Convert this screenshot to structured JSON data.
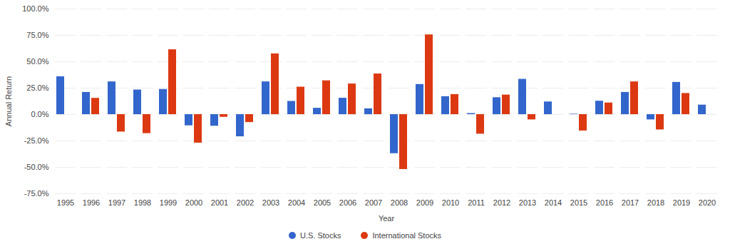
{
  "chart_data": {
    "type": "bar",
    "x_label": "Year",
    "y_label": "Annual Return",
    "categories": [
      "1995",
      "1996",
      "1997",
      "1998",
      "1999",
      "2000",
      "2001",
      "2002",
      "2003",
      "2004",
      "2005",
      "2006",
      "2007",
      "2008",
      "2009",
      "2010",
      "2011",
      "2012",
      "2013",
      "2014",
      "2015",
      "2016",
      "2017",
      "2018",
      "2019",
      "2020"
    ],
    "series": [
      {
        "name": "U.S. Stocks",
        "color": "#3366cc",
        "values": [
          35.8,
          21.0,
          31.0,
          23.3,
          23.8,
          -10.6,
          -11.0,
          -21.0,
          31.0,
          12.5,
          6.0,
          15.5,
          5.5,
          -37.0,
          28.5,
          17.0,
          1.0,
          16.0,
          33.4,
          12.0,
          0.4,
          12.7,
          21.0,
          -5.0,
          30.5,
          9.0
        ]
      },
      {
        "name": "International Stocks",
        "color": "#dc3912",
        "values": [
          null,
          15.4,
          -16.5,
          -18.0,
          61.4,
          -27.0,
          -2.5,
          -7.5,
          57.5,
          26.0,
          32.0,
          29.0,
          38.5,
          -52.0,
          75.5,
          19.0,
          -18.5,
          18.5,
          -5.0,
          null,
          -15.5,
          11.0,
          31.0,
          -14.5,
          20.0,
          null
        ]
      }
    ],
    "ylim": [
      -75,
      100
    ],
    "yticks": [
      {
        "value": -75,
        "label": "-75.0%"
      },
      {
        "value": -50,
        "label": "-50.0%"
      },
      {
        "value": -25,
        "label": "-25.0%"
      },
      {
        "value": 0,
        "label": "0.0%"
      },
      {
        "value": 25,
        "label": "25.0%"
      },
      {
        "value": 50,
        "label": "50.0%"
      },
      {
        "value": 75,
        "label": "75.0%"
      },
      {
        "value": 100,
        "label": "100.0%"
      }
    ],
    "grid": true,
    "legend": "bottom"
  }
}
